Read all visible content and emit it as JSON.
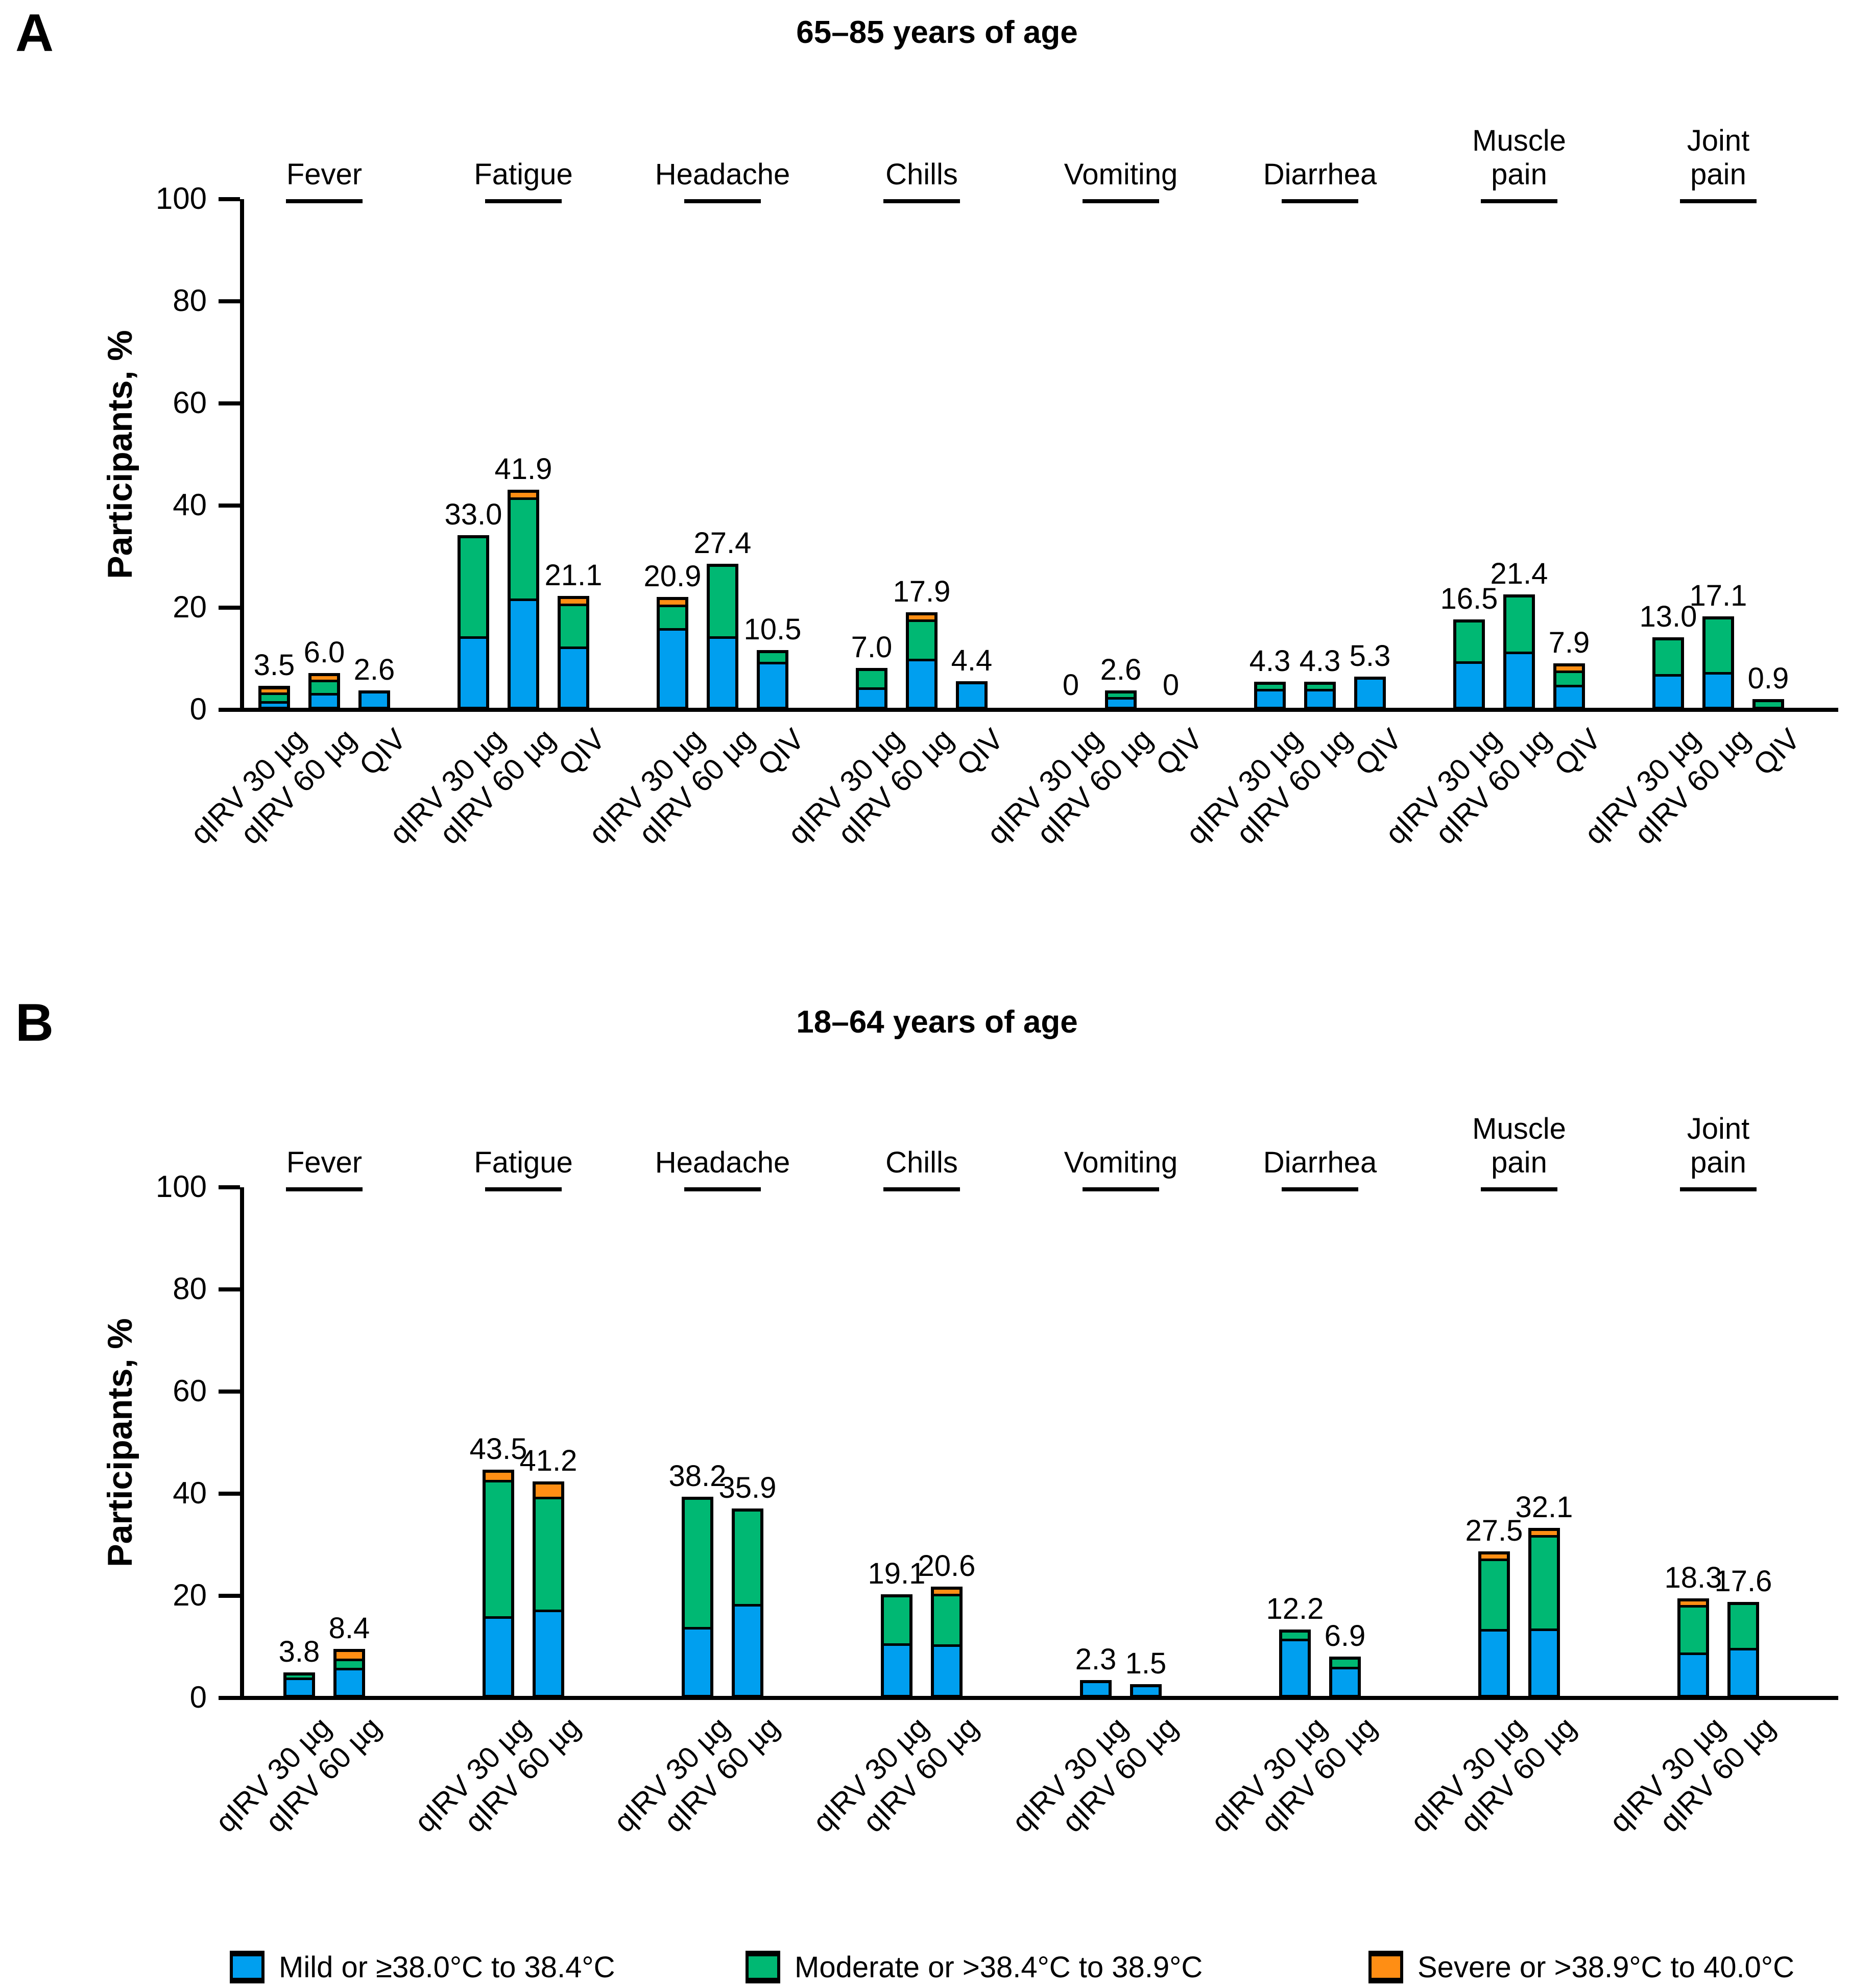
{
  "figure": {
    "legend": [
      {
        "severity": "mild",
        "label": "Mild or ≥38.0°C to 38.4°C",
        "color": "#009FEF"
      },
      {
        "severity": "moderate",
        "label": "Moderate or >38.4°C to 38.9°C",
        "color": "#00B873"
      },
      {
        "severity": "severe",
        "label": "Severe or >38.9°C to 40.0°C",
        "color": "#FF8E14"
      }
    ]
  },
  "chart_data": [
    {
      "type": "bar",
      "stacked": true,
      "panel_label": "A",
      "title": "65–85 years of age",
      "ylabel": "Participants, %",
      "ylim": [
        0,
        100
      ],
      "yticks": [
        0,
        20,
        40,
        60,
        80,
        100
      ],
      "grid": false,
      "legend_position": "bottom",
      "stack_order": [
        "mild",
        "moderate",
        "severe"
      ],
      "groups": [
        "qIRV 30 µg",
        "qIRV 60 µg",
        "QIV"
      ],
      "categories": [
        {
          "label": "Fever",
          "lines": [
            "Fever"
          ],
          "bars": [
            {
              "group": "qIRV 30 µg",
              "total": "3.5",
              "mild": 0.9,
              "moderate": 1.7,
              "severe": 0.9
            },
            {
              "group": "qIRV 60 µg",
              "total": "6.0",
              "mild": 2.6,
              "moderate": 2.5,
              "severe": 0.9
            },
            {
              "group": "QIV",
              "total": "2.6",
              "mild": 2.6,
              "moderate": 0,
              "severe": 0
            }
          ]
        },
        {
          "label": "Fatigue",
          "lines": [
            "Fatigue"
          ],
          "bars": [
            {
              "group": "qIRV 30 µg",
              "total": "33.0",
              "mild": 13.5,
              "moderate": 19.5,
              "severe": 0
            },
            {
              "group": "qIRV 60 µg",
              "total": "41.9",
              "mild": 21.2,
              "moderate": 19.8,
              "severe": 0.9
            },
            {
              "group": "QIV",
              "total": "21.1",
              "mild": 11.9,
              "moderate": 8.3,
              "severe": 0.9
            }
          ]
        },
        {
          "label": "Headache",
          "lines": [
            "Headache"
          ],
          "bars": [
            {
              "group": "qIRV 30 µg",
              "total": "20.9",
              "mild": 15.7,
              "moderate": 4.3,
              "severe": 0.9
            },
            {
              "group": "qIRV 60 µg",
              "total": "27.4",
              "mild": 13.5,
              "moderate": 13.9,
              "severe": 0
            },
            {
              "group": "QIV",
              "total": "10.5",
              "mild": 8.7,
              "moderate": 1.8,
              "severe": 0
            }
          ]
        },
        {
          "label": "Chills",
          "lines": [
            "Chills"
          ],
          "bars": [
            {
              "group": "qIRV 30 µg",
              "total": "7.0",
              "mild": 3.5,
              "moderate": 3.5,
              "severe": 0
            },
            {
              "group": "qIRV 60 µg",
              "total": "17.9",
              "mild": 9.4,
              "moderate": 7.6,
              "severe": 0.9
            },
            {
              "group": "QIV",
              "total": "4.4",
              "mild": 4.4,
              "moderate": 0,
              "severe": 0
            }
          ]
        },
        {
          "label": "Vomiting",
          "lines": [
            "Vomiting"
          ],
          "bars": [
            {
              "group": "qIRV 30 µg",
              "total": "0",
              "mild": 0,
              "moderate": 0,
              "severe": 0
            },
            {
              "group": "qIRV 60 µg",
              "total": "2.6",
              "mild": 1.7,
              "moderate": 0.9,
              "severe": 0
            },
            {
              "group": "QIV",
              "total": "0",
              "mild": 0,
              "moderate": 0,
              "severe": 0
            }
          ]
        },
        {
          "label": "Diarrhea",
          "lines": [
            "Diarrhea"
          ],
          "bars": [
            {
              "group": "qIRV 30 µg",
              "total": "4.3",
              "mild": 3.4,
              "moderate": 0.9,
              "severe": 0
            },
            {
              "group": "qIRV 60 µg",
              "total": "4.3",
              "mild": 3.4,
              "moderate": 0.9,
              "severe": 0
            },
            {
              "group": "QIV",
              "total": "5.3",
              "mild": 5.3,
              "moderate": 0,
              "severe": 0
            }
          ]
        },
        {
          "label": "Muscle pain",
          "lines": [
            "Muscle",
            "pain"
          ],
          "bars": [
            {
              "group": "qIRV 30 µg",
              "total": "16.5",
              "mild": 8.7,
              "moderate": 7.8,
              "severe": 0
            },
            {
              "group": "qIRV 60 µg",
              "total": "21.4",
              "mild": 10.5,
              "moderate": 10.9,
              "severe": 0
            },
            {
              "group": "QIV",
              "total": "7.9",
              "mild": 4.4,
              "moderate": 2.6,
              "severe": 0.9
            }
          ]
        },
        {
          "label": "Joint pain",
          "lines": [
            "Joint",
            "pain"
          ],
          "bars": [
            {
              "group": "qIRV 30 µg",
              "total": "13.0",
              "mild": 6.1,
              "moderate": 6.9,
              "severe": 0
            },
            {
              "group": "qIRV 60 µg",
              "total": "17.1",
              "mild": 6.5,
              "moderate": 10.6,
              "severe": 0
            },
            {
              "group": "QIV",
              "total": "0.9",
              "mild": 0,
              "moderate": 0.9,
              "severe": 0
            }
          ]
        }
      ]
    },
    {
      "type": "bar",
      "stacked": true,
      "panel_label": "B",
      "title": "18–64 years of age",
      "ylabel": "Participants, %",
      "ylim": [
        0,
        100
      ],
      "yticks": [
        0,
        20,
        40,
        60,
        80,
        100
      ],
      "grid": false,
      "legend_position": "bottom",
      "stack_order": [
        "mild",
        "moderate",
        "severe"
      ],
      "groups": [
        "qIRV 30 µg",
        "qIRV 60 µg"
      ],
      "categories": [
        {
          "label": "Fever",
          "lines": [
            "Fever"
          ],
          "bars": [
            {
              "group": "qIRV 30 µg",
              "total": "3.8",
              "mild": 3.3,
              "moderate": 0.5,
              "severe": 0
            },
            {
              "group": "qIRV 60 µg",
              "total": "8.4",
              "mild": 5.4,
              "moderate": 1.5,
              "severe": 1.5
            }
          ]
        },
        {
          "label": "Fatigue",
          "lines": [
            "Fatigue"
          ],
          "bars": [
            {
              "group": "qIRV 30 µg",
              "total": "43.5",
              "mild": 15.2,
              "moderate": 26.8,
              "severe": 1.5
            },
            {
              "group": "qIRV 60 µg",
              "total": "41.2",
              "mild": 16.6,
              "moderate": 22.1,
              "severe": 2.5
            }
          ]
        },
        {
          "label": "Headache",
          "lines": [
            "Headache"
          ],
          "bars": [
            {
              "group": "qIRV 30 µg",
              "total": "38.2",
              "mild": 13.0,
              "moderate": 25.2,
              "severe": 0
            },
            {
              "group": "qIRV 60 µg",
              "total": "35.9",
              "mild": 17.5,
              "moderate": 18.4,
              "severe": 0
            }
          ]
        },
        {
          "label": "Chills",
          "lines": [
            "Chills"
          ],
          "bars": [
            {
              "group": "qIRV 30 µg",
              "total": "19.1",
              "mild": 9.9,
              "moderate": 9.2,
              "severe": 0
            },
            {
              "group": "qIRV 60 µg",
              "total": "20.6",
              "mild": 9.9,
              "moderate": 9.9,
              "severe": 0.8
            }
          ]
        },
        {
          "label": "Vomiting",
          "lines": [
            "Vomiting"
          ],
          "bars": [
            {
              "group": "qIRV 30 µg",
              "total": "2.3",
              "mild": 2.3,
              "moderate": 0,
              "severe": 0
            },
            {
              "group": "qIRV 60 µg",
              "total": "1.5",
              "mild": 1.5,
              "moderate": 0,
              "severe": 0
            }
          ]
        },
        {
          "label": "Diarrhea",
          "lines": [
            "Diarrhea"
          ],
          "bars": [
            {
              "group": "qIRV 30 µg",
              "total": "12.2",
              "mild": 11.0,
              "moderate": 1.2,
              "severe": 0
            },
            {
              "group": "qIRV 60 µg",
              "total": "6.9",
              "mild": 5.4,
              "moderate": 1.5,
              "severe": 0
            }
          ]
        },
        {
          "label": "Muscle pain",
          "lines": [
            "Muscle",
            "pain"
          ],
          "bars": [
            {
              "group": "qIRV 30 µg",
              "total": "27.5",
              "mild": 12.9,
              "moderate": 13.8,
              "severe": 0.8
            },
            {
              "group": "qIRV 60 µg",
              "total": "32.1",
              "mild": 12.9,
              "moderate": 18.4,
              "severe": 0.8
            }
          ]
        },
        {
          "label": "Joint pain",
          "lines": [
            "Joint",
            "pain"
          ],
          "bars": [
            {
              "group": "qIRV 30 µg",
              "total": "18.3",
              "mild": 8.2,
              "moderate": 9.3,
              "severe": 0.8
            },
            {
              "group": "qIRV 60 µg",
              "total": "17.6",
              "mild": 9.0,
              "moderate": 8.6,
              "severe": 0
            }
          ]
        }
      ]
    }
  ]
}
